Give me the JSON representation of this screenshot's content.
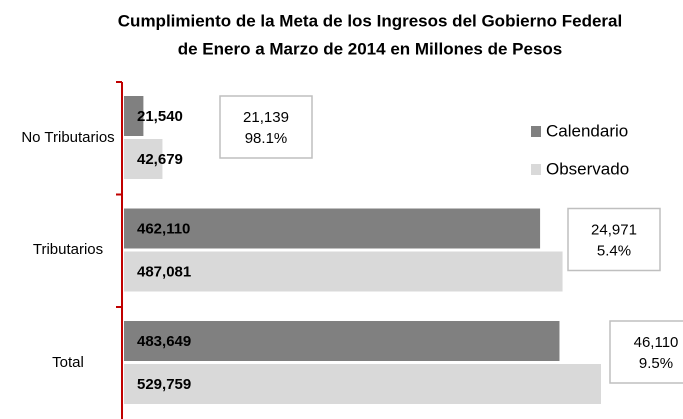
{
  "chart_data": {
    "type": "bar",
    "orientation": "horizontal",
    "title": [
      "Cumplimiento de la Meta de los Ingresos del Gobierno Federal",
      "de Enero a Marzo de 2014 en Millones de Pesos"
    ],
    "categories": [
      "No Tributarios",
      "Tributarios",
      "Total"
    ],
    "series": [
      {
        "name": "Calendario",
        "color": "#808080",
        "values": [
          21540,
          462110,
          483649
        ],
        "value_labels": [
          "21,540",
          "462,110",
          "483,649"
        ]
      },
      {
        "name": "Observado",
        "color": "#d9d9d9",
        "values": [
          42679,
          487081,
          529759
        ],
        "value_labels": [
          "42,679",
          "487,081",
          "529,759"
        ]
      }
    ],
    "annotations": [
      [
        "21,139",
        "98.1%"
      ],
      [
        "24,971",
        "5.4%"
      ],
      [
        "46,110",
        "9.5%"
      ]
    ],
    "axis_color": "#c00000"
  }
}
